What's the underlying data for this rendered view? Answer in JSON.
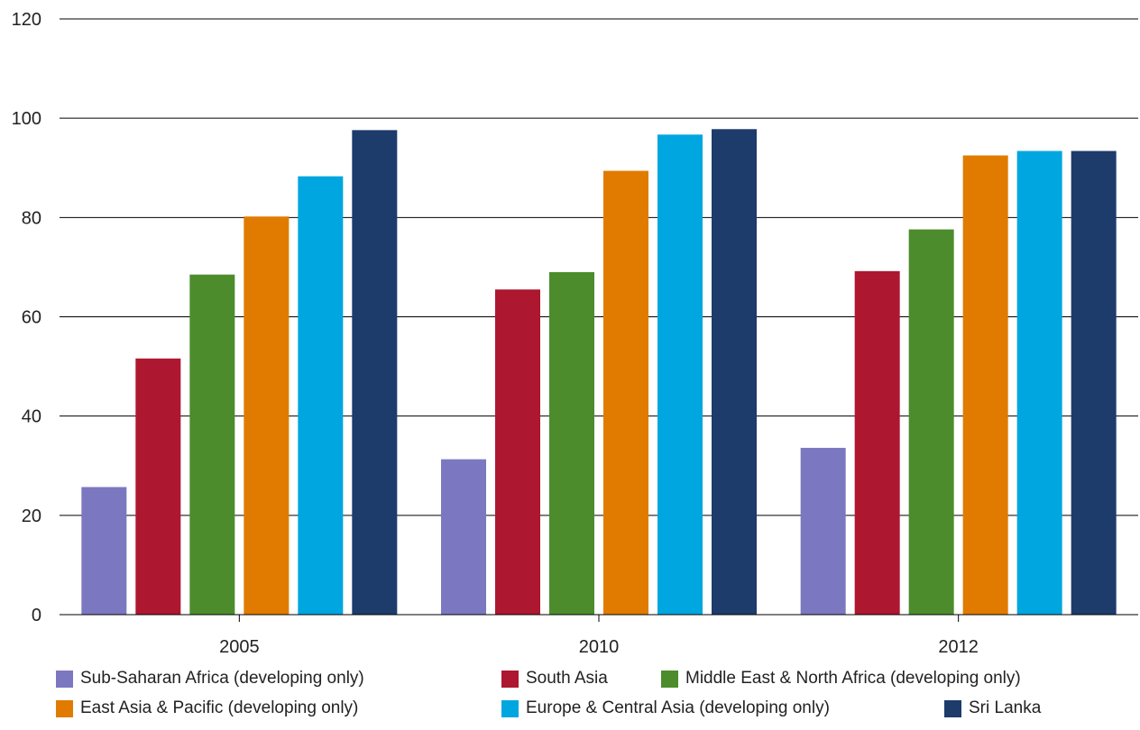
{
  "chart_data": {
    "type": "bar",
    "categories": [
      "2005",
      "2010",
      "2012"
    ],
    "ylim": [
      0,
      120
    ],
    "yticks": [
      0,
      20,
      40,
      60,
      80,
      100,
      120
    ],
    "grid": true,
    "legend_position": "bottom",
    "series": [
      {
        "name": "Sub-Saharan Africa (developing only)",
        "color": "#7b78c1",
        "values": [
          25.7,
          31.3,
          33.6
        ]
      },
      {
        "name": "South Asia",
        "color": "#ad1730",
        "values": [
          51.6,
          65.5,
          69.2
        ]
      },
      {
        "name": "Middle East & North Africa (developing only)",
        "color": "#4c8c2c",
        "values": [
          68.5,
          69.0,
          77.6
        ]
      },
      {
        "name": "East Asia & Pacific (developing only)",
        "color": "#e07b00",
        "values": [
          80.2,
          89.4,
          92.5
        ]
      },
      {
        "name": "Europe & Central Asia (developing only)",
        "color": "#00a6df",
        "values": [
          88.3,
          96.7,
          93.4
        ]
      },
      {
        "name": "Sri Lanka",
        "color": "#1d3b6b",
        "values": [
          97.6,
          97.8,
          93.4
        ]
      }
    ]
  }
}
